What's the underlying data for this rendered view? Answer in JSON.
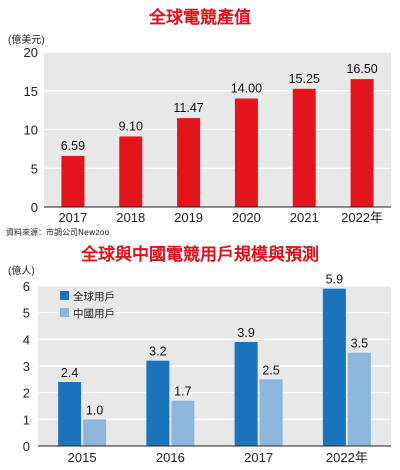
{
  "source": "資料來源：市調公司Newzoo",
  "colors": {
    "title": "#d7141a",
    "bar": "#e3141b",
    "series1": "#1b74bb",
    "series2": "#8db6dd",
    "panel": "#e8e8e8",
    "grid": "#ffffff",
    "axis": "#222222"
  },
  "charts": [
    {
      "title": "全球電競產值",
      "title_style": "color:#d7141a"
    },
    {
      "title": "全球與中國電競用戶規模與預測",
      "title_style": "color:#d7141a"
    }
  ],
  "chart_data": [
    {
      "type": "bar",
      "title": "全球電競產值",
      "ylabel": "(億美元)",
      "categories": [
        "2017",
        "2018",
        "2019",
        "2020",
        "2021",
        "2022年"
      ],
      "values": [
        6.59,
        9.1,
        11.47,
        14.0,
        15.25,
        16.5
      ],
      "data_labels": [
        "6.59",
        "9.10",
        "11.47",
        "14.00",
        "15.25",
        "16.50"
      ],
      "ylim": [
        0,
        20
      ],
      "yticks": [
        0,
        5,
        10,
        15,
        20
      ],
      "grid": true,
      "color": "#e3141b"
    },
    {
      "type": "bar",
      "title": "全球與中國電競用戶規模與預測",
      "ylabel": "(億人)",
      "categories": [
        "2015",
        "2016",
        "2017",
        "2022年"
      ],
      "series": [
        {
          "name": "全球用戶",
          "values": [
            2.4,
            3.2,
            3.9,
            5.9
          ],
          "labels": [
            "2.4",
            "3.2",
            "3.9",
            "5.9"
          ],
          "color": "#1b74bb"
        },
        {
          "name": "中國用戶",
          "values": [
            1.0,
            1.7,
            2.5,
            3.5
          ],
          "labels": [
            "1.0",
            "1.7",
            "2.5",
            "3.5"
          ],
          "color": "#8db6dd"
        }
      ],
      "ylim": [
        0,
        6
      ],
      "yticks": [
        0,
        1,
        2,
        3,
        4,
        5,
        6
      ],
      "grid": true,
      "legend": "top-left"
    }
  ]
}
